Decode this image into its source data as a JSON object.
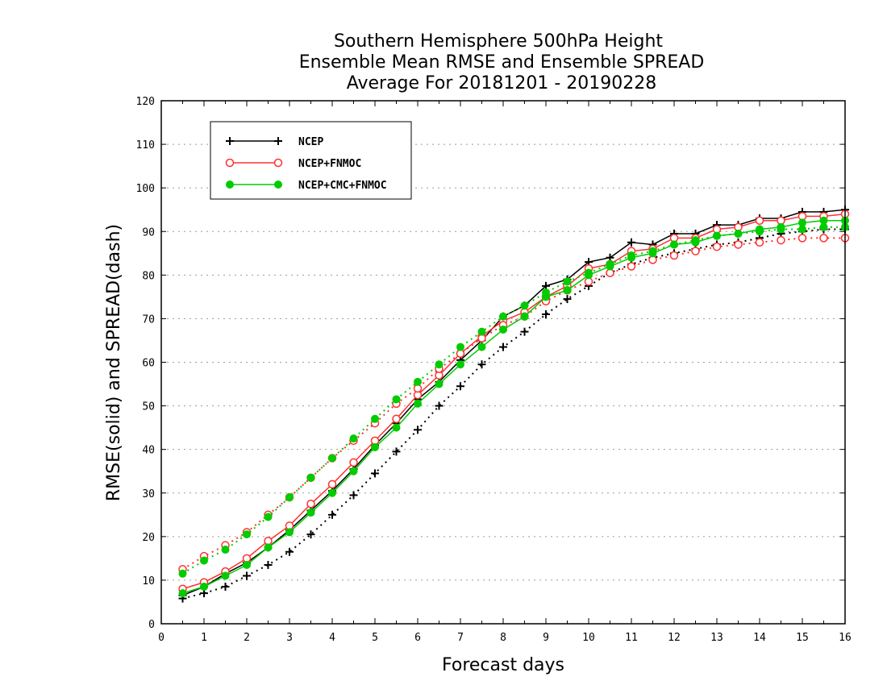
{
  "chart_data": {
    "type": "line",
    "title": [
      "Southern Hemisphere 500hPa Height",
      "Ensemble Mean RMSE and Ensemble SPREAD",
      "Average For 20181201 - 20190228"
    ],
    "xlabel": "Forecast days",
    "ylabel": "RMSE(solid) and SPREAD(dash)",
    "xlim": [
      0,
      16
    ],
    "ylim": [
      0,
      120
    ],
    "xticks": [
      0,
      1,
      2,
      3,
      4,
      5,
      6,
      7,
      8,
      9,
      10,
      11,
      12,
      13,
      14,
      15,
      16
    ],
    "yticks": [
      0,
      10,
      20,
      30,
      40,
      50,
      60,
      70,
      80,
      90,
      100,
      110,
      120
    ],
    "grid": "horizontal dotted",
    "legend_position": "top-left",
    "x": [
      0.5,
      1,
      1.5,
      2,
      2.5,
      3,
      3.5,
      4,
      4.5,
      5,
      5.5,
      6,
      6.5,
      7,
      7.5,
      8,
      8.5,
      9,
      9.5,
      10,
      10.5,
      11,
      11.5,
      12,
      12.5,
      13,
      13.5,
      14,
      14.5,
      15,
      15.5,
      16
    ],
    "series": [
      {
        "name": "NCEP",
        "color": "#000000",
        "marker": "plus",
        "rmse": [
          6.5,
          8.5,
          11.5,
          14,
          17.5,
          21.5,
          26,
          30.5,
          35.5,
          41,
          46,
          51.5,
          55.5,
          60.5,
          65,
          70.5,
          73,
          77.5,
          79,
          83,
          84,
          87.5,
          87,
          89.5,
          89.5,
          91.5,
          91.5,
          93,
          93,
          94.5,
          94.5,
          95
        ],
        "spread": [
          5.8,
          7,
          8.5,
          11,
          13.5,
          16.5,
          20.5,
          25,
          29.5,
          34.5,
          39.5,
          44.5,
          50,
          54.5,
          59.5,
          63.5,
          67,
          71,
          74.5,
          77.5,
          80.5,
          82.5,
          84,
          85,
          86,
          87,
          87.5,
          88.5,
          89.5,
          90,
          90.5,
          90.5
        ]
      },
      {
        "name": "NCEP+FNMOC",
        "color": "#ff3030",
        "marker": "open-circle",
        "rmse": [
          8,
          9.5,
          12,
          15,
          19,
          22.5,
          27.5,
          32,
          37,
          42,
          47,
          52.5,
          57,
          62,
          66,
          69.5,
          71.5,
          75,
          77.5,
          81.5,
          82.5,
          85.5,
          86,
          88.5,
          88.5,
          90.5,
          91,
          92.5,
          92.5,
          93.5,
          93.5,
          94
        ],
        "spread": [
          12.5,
          15.5,
          18,
          21,
          25,
          29,
          33.5,
          38,
          42,
          46,
          50.5,
          54,
          58.5,
          62,
          65.5,
          68.5,
          70.5,
          74,
          76.5,
          78.5,
          80.5,
          82,
          83.5,
          84.5,
          85.5,
          86.5,
          87,
          87.5,
          88,
          88.5,
          88.5,
          88.5
        ]
      },
      {
        "name": "NCEP+CMC+FNMOC",
        "color": "#00cc00",
        "marker": "filled-circle",
        "rmse": [
          7,
          8.5,
          11,
          13.5,
          17.5,
          21,
          25.5,
          30,
          35,
          40.5,
          45,
          50.5,
          55,
          59.5,
          63.5,
          67.5,
          70.5,
          75,
          76.5,
          80,
          82,
          84,
          85,
          87,
          87.5,
          89,
          89.5,
          90.5,
          91,
          92,
          92.5,
          92.5
        ],
        "spread": [
          11.5,
          14.5,
          17,
          20.5,
          24.5,
          29,
          33.5,
          38,
          42.5,
          47,
          51.5,
          55.5,
          59.5,
          63.5,
          67,
          70.5,
          73,
          76,
          78.5,
          80.5,
          82.5,
          84.5,
          85.5,
          87,
          88,
          89,
          89.5,
          90,
          90.5,
          90.5,
          91,
          91
        ]
      }
    ]
  }
}
